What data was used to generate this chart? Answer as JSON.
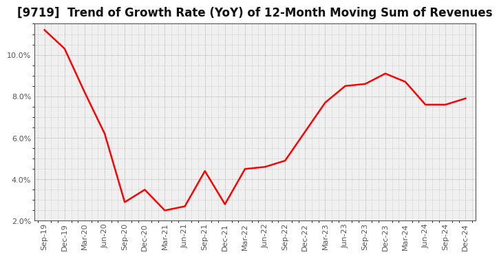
{
  "title": "[9719]  Trend of Growth Rate (YoY) of 12-Month Moving Sum of Revenues",
  "line_color": "#ff0000",
  "line_width": 1.8,
  "background_color": "#ffffff",
  "plot_bg_color": "#f0f0f0",
  "grid_color": "#888888",
  "border_color": "#555555",
  "ylim": [
    0.02,
    0.115
  ],
  "yticks": [
    0.02,
    0.04,
    0.06,
    0.08,
    0.1
  ],
  "xlabels": [
    "Sep-19",
    "Dec-19",
    "Mar-20",
    "Jun-20",
    "Sep-20",
    "Dec-20",
    "Mar-21",
    "Jun-21",
    "Sep-21",
    "Dec-21",
    "Mar-22",
    "Jun-22",
    "Sep-22",
    "Dec-22",
    "Mar-23",
    "Jun-23",
    "Sep-23",
    "Dec-23",
    "Mar-24",
    "Jun-24",
    "Sep-24",
    "Dec-24"
  ],
  "values": [
    0.112,
    0.103,
    0.082,
    0.062,
    0.029,
    0.035,
    0.025,
    0.027,
    0.044,
    0.028,
    0.045,
    0.046,
    0.049,
    0.063,
    0.077,
    0.085,
    0.086,
    0.091,
    0.087,
    0.076,
    0.076,
    0.079
  ],
  "title_fontsize": 12,
  "tick_fontsize": 8,
  "tick_color": "#555555"
}
